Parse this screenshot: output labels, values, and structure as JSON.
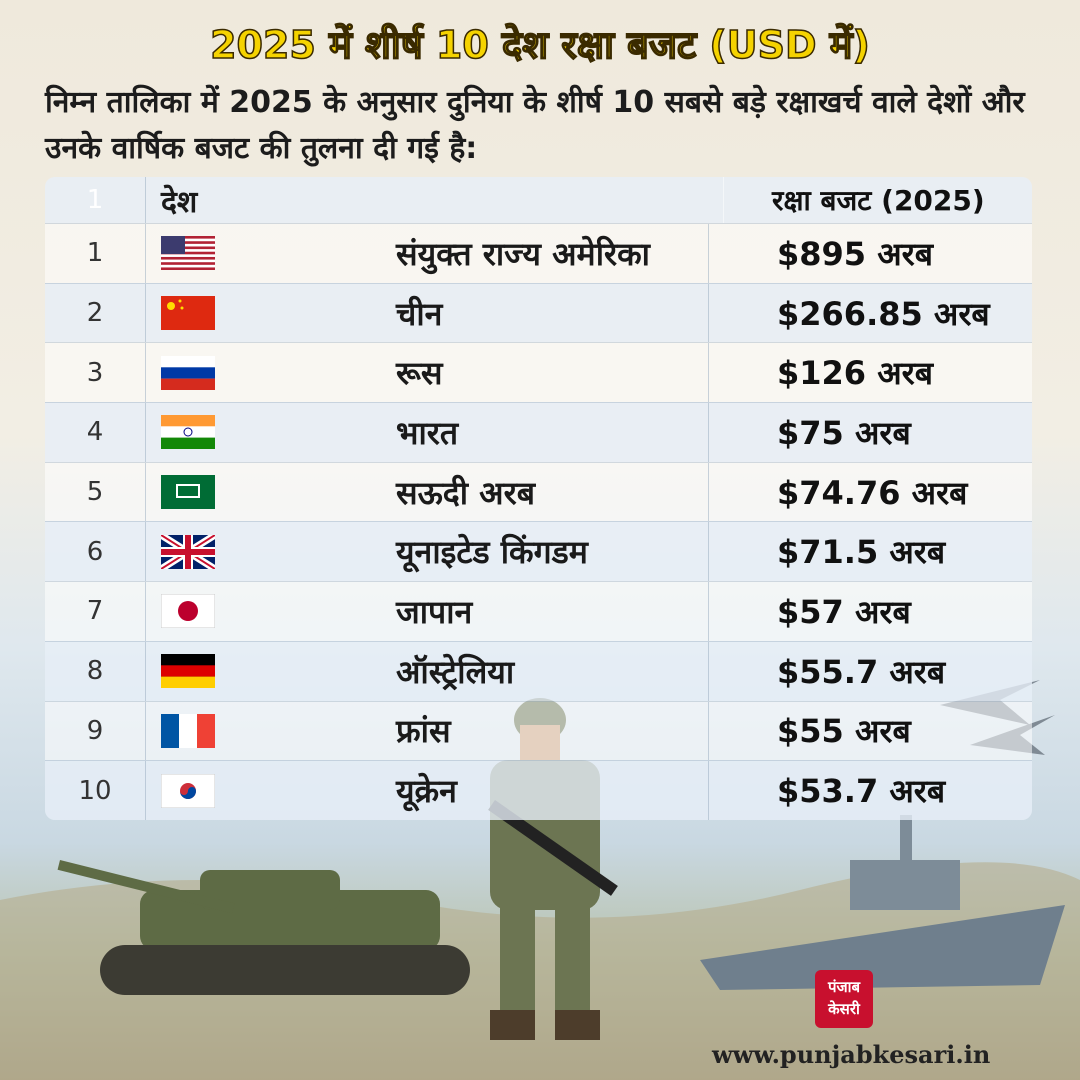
{
  "header": {
    "title": "2025 में शीर्ष 10 देश रक्षा बजट (USD में)",
    "subtitle": "निम्न तालिका में 2025 के अनुसार दुनिया के शीर्ष 10 सबसे बड़े रक्षाखर्च वाले देशों और उनके वार्षिक बजट की तुलना दी गई है:"
  },
  "table": {
    "columns": [
      "1",
      "देश",
      "रक्षा बजट (2025)"
    ],
    "rows": [
      [
        "1",
        "संयुक्त राज्य अमेरिका",
        "$895 अरब"
      ],
      [
        "2",
        "चीन",
        "$266.85 अरब"
      ],
      [
        "3",
        "रूस",
        "$126 अरब"
      ],
      [
        "4",
        "भारत",
        "$75 अरब"
      ],
      [
        "5",
        "सऊदी अरब",
        "$74.76 अरब"
      ],
      [
        "6",
        "यूनाइटेड किंगडम",
        "$71.5 अरब"
      ],
      [
        "7",
        "जापान",
        "$57 अरब"
      ],
      [
        "8",
        "ऑस्ट्रेलिया",
        "$55.7 अरब"
      ],
      [
        "9",
        "फ्रांस",
        "$55 अरब"
      ],
      [
        "10",
        "यूक्रेन",
        "$53.7 अरब"
      ]
    ]
  },
  "footer": {
    "logo": [
      "पंजाब",
      "केसरी"
    ],
    "url": "www.punjabkesari.in"
  }
}
